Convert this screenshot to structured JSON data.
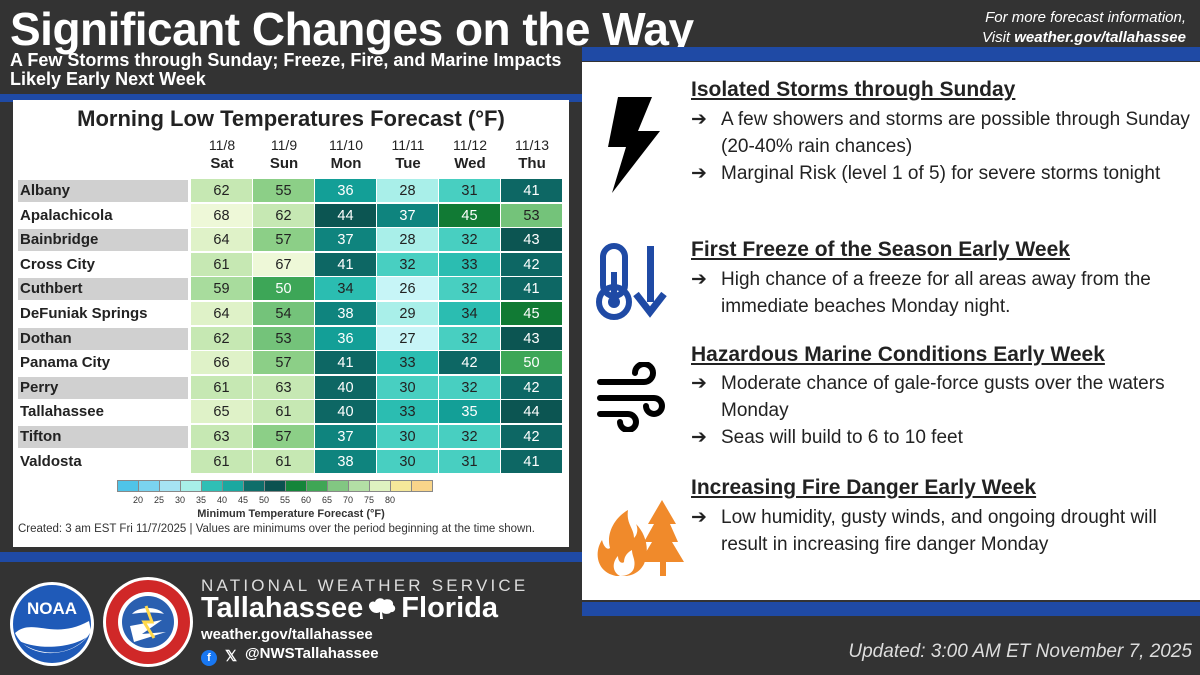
{
  "header": {
    "title": "Significant Changes on the Way",
    "subtitle": "A Few Storms through Sunday; Freeze, Fire, and Marine Impacts Likely Early Next Week",
    "info_line1": "For more forecast information,",
    "info_line2_prefix": "Visit ",
    "info_link": "weather.gov/tallahassee"
  },
  "table": {
    "title": "Morning Low Temperatures Forecast (°F)",
    "dates": [
      "11/8",
      "11/9",
      "11/10",
      "11/11",
      "11/12",
      "11/13"
    ],
    "days": [
      "Sat",
      "Sun",
      "Mon",
      "Tue",
      "Wed",
      "Thu"
    ],
    "rows": [
      {
        "city": "Albany",
        "values": [
          62,
          55,
          36,
          28,
          31,
          41
        ]
      },
      {
        "city": "Apalachicola",
        "values": [
          68,
          62,
          44,
          37,
          45,
          53
        ]
      },
      {
        "city": "Bainbridge",
        "values": [
          64,
          57,
          37,
          28,
          32,
          43
        ]
      },
      {
        "city": "Cross City",
        "values": [
          61,
          67,
          41,
          32,
          33,
          42
        ]
      },
      {
        "city": "Cuthbert",
        "values": [
          59,
          50,
          34,
          26,
          32,
          41
        ]
      },
      {
        "city": "DeFuniak Springs",
        "values": [
          64,
          54,
          38,
          29,
          34,
          45
        ]
      },
      {
        "city": "Dothan",
        "values": [
          62,
          53,
          36,
          27,
          32,
          43
        ]
      },
      {
        "city": "Panama City",
        "values": [
          66,
          57,
          41,
          33,
          42,
          50
        ]
      },
      {
        "city": "Perry",
        "values": [
          61,
          63,
          40,
          30,
          32,
          42
        ]
      },
      {
        "city": "Tallahassee",
        "values": [
          65,
          61,
          40,
          33,
          35,
          44
        ]
      },
      {
        "city": "Tifton",
        "values": [
          63,
          57,
          37,
          30,
          32,
          42
        ]
      },
      {
        "city": "Valdosta",
        "values": [
          61,
          61,
          38,
          30,
          31,
          41
        ]
      }
    ],
    "colorbar_ticks": [
      "20",
      "25",
      "30",
      "35",
      "40",
      "45",
      "50",
      "55",
      "60",
      "65",
      "70",
      "75",
      "80"
    ],
    "colorbar_colors": [
      "#4fc4e8",
      "#7ad3ef",
      "#a6e3f3",
      "#a8efe8",
      "#2fbfb5",
      "#1aa8a0",
      "#0f6e6a",
      "#0c5250",
      "#14853a",
      "#3fa655",
      "#82c782",
      "#b3dfa5",
      "#dff2c0",
      "#f5e89a",
      "#f9d58a"
    ],
    "colorbar_label": "Minimum Temperature Forecast (°F)",
    "created": "Created: 3 am EST Fri 11/7/2025  |  Values are minimums over the period beginning at the time shown."
  },
  "sections": [
    {
      "heading": "Isolated Storms through Sunday",
      "icon": "lightning-icon",
      "bullets": [
        "A few showers and storms are possible through Sunday (20-40% rain chances)",
        "Marginal Risk (level 1 of 5) for severe storms tonight"
      ]
    },
    {
      "heading": "First Freeze of the Season Early Week",
      "icon": "thermometer-down-icon",
      "bullets": [
        "High chance of a freeze for all areas away from the immediate beaches Monday night."
      ]
    },
    {
      "heading": "Hazardous Marine Conditions Early Week",
      "icon": "wind-icon",
      "bullets": [
        "Moderate chance of gale-force gusts over the waters Monday",
        "Seas will build to 6 to 10 feet"
      ]
    },
    {
      "heading": "Increasing Fire Danger Early Week",
      "icon": "fire-tree-icon",
      "bullets": [
        "Low humidity, gusty winds, and ongoing drought will result in increasing fire danger Monday"
      ]
    }
  ],
  "bullet_arrow": "➔",
  "footer": {
    "agency": "NATIONAL WEATHER SERVICE",
    "office_city": "Tallahassee",
    "office_state": "Florida",
    "website": "weather.gov/tallahassee",
    "social": "@NWSTallahassee",
    "updated": "Updated: 3:00 AM ET November 7, 2025",
    "noaa_logo_text": "NOAA",
    "nws_logo_text": "NATIONAL WEATHER SERVICE"
  },
  "colors": {
    "background": "#333333",
    "accent_blue": "#1f4aa5",
    "icon_navy": "#1f4aa5",
    "fire_orange": "#f08a2b"
  }
}
